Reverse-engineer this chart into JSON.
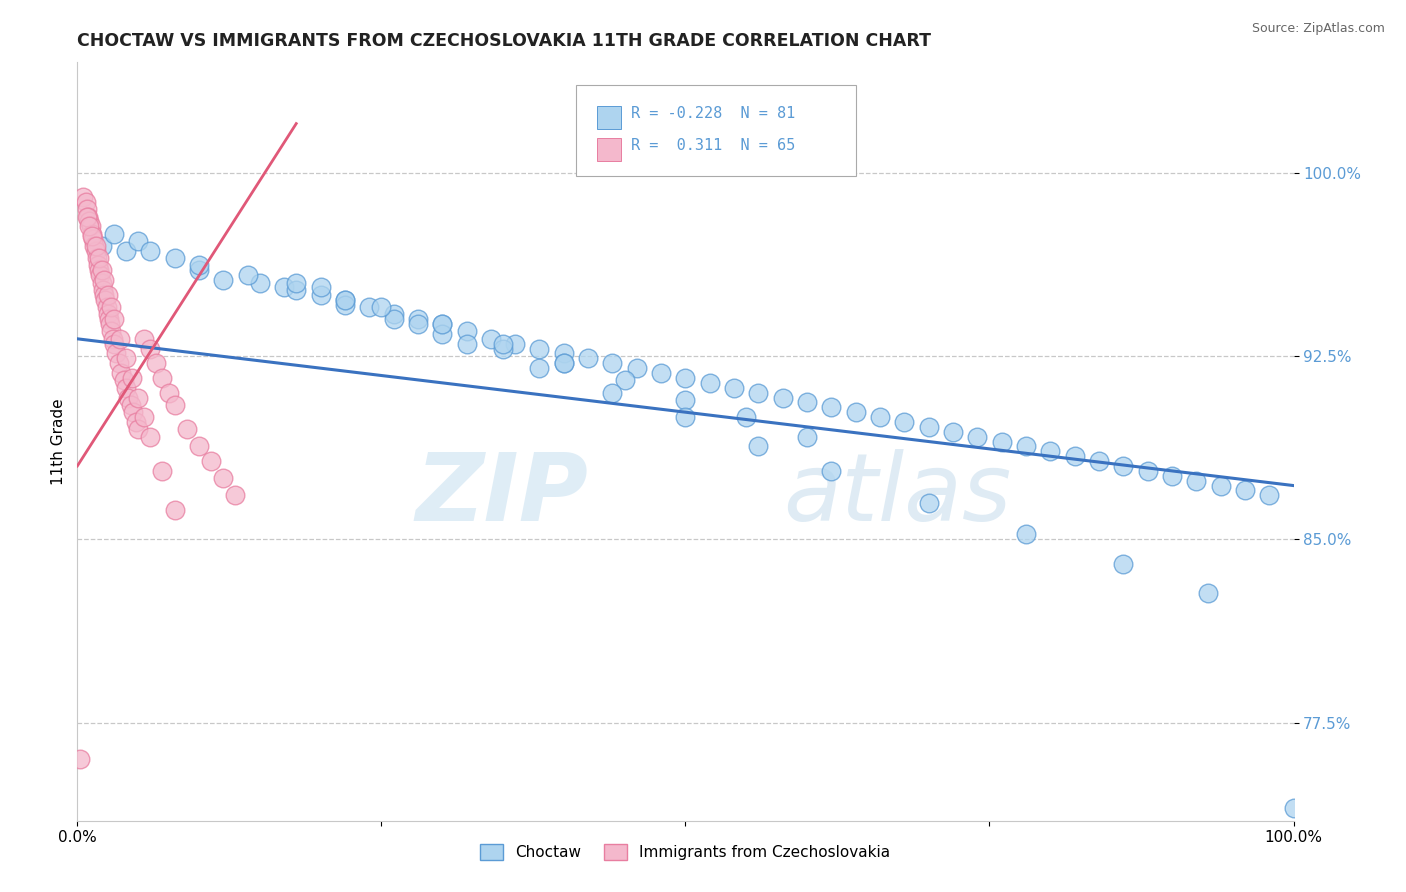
{
  "title": "CHOCTAW VS IMMIGRANTS FROM CZECHOSLOVAKIA 11TH GRADE CORRELATION CHART",
  "source": "Source: ZipAtlas.com",
  "ylabel": "11th Grade",
  "yticks": [
    0.775,
    0.85,
    0.925,
    1.0
  ],
  "ytick_labels": [
    "77.5%",
    "85.0%",
    "92.5%",
    "100.0%"
  ],
  "xlim": [
    0.0,
    1.0
  ],
  "ylim": [
    0.735,
    1.045
  ],
  "legend_blue_r": "-0.228",
  "legend_blue_n": "81",
  "legend_pink_r": "0.311",
  "legend_pink_n": "65",
  "legend_label_blue": "Choctaw",
  "legend_label_pink": "Immigrants from Czechoslovakia",
  "blue_color": "#aed4ef",
  "pink_color": "#f4b8cc",
  "blue_edge_color": "#5b9bd5",
  "pink_edge_color": "#e87ea0",
  "blue_line_color": "#3a72c0",
  "pink_line_color": "#e05878",
  "watermark_zip": "ZIP",
  "watermark_atlas": "atlas",
  "blue_scatter_x": [
    0.02,
    0.03,
    0.04,
    0.05,
    0.06,
    0.08,
    0.1,
    0.12,
    0.15,
    0.17,
    0.2,
    0.22,
    0.24,
    0.26,
    0.28,
    0.3,
    0.32,
    0.34,
    0.36,
    0.38,
    0.4,
    0.42,
    0.44,
    0.46,
    0.48,
    0.5,
    0.52,
    0.54,
    0.56,
    0.58,
    0.6,
    0.62,
    0.64,
    0.66,
    0.68,
    0.7,
    0.72,
    0.74,
    0.76,
    0.78,
    0.8,
    0.82,
    0.84,
    0.86,
    0.88,
    0.9,
    0.92,
    0.94,
    0.96,
    0.98,
    1.0,
    0.1,
    0.14,
    0.18,
    0.22,
    0.26,
    0.3,
    0.35,
    0.4,
    0.2,
    0.25,
    0.3,
    0.35,
    0.4,
    0.45,
    0.5,
    0.55,
    0.6,
    0.18,
    0.22,
    0.28,
    0.32,
    0.38,
    0.44,
    0.5,
    0.56,
    0.62,
    0.7,
    0.78,
    0.86,
    0.93
  ],
  "blue_scatter_y": [
    0.97,
    0.975,
    0.968,
    0.972,
    0.968,
    0.965,
    0.96,
    0.956,
    0.955,
    0.953,
    0.95,
    0.948,
    0.945,
    0.942,
    0.94,
    0.938,
    0.935,
    0.932,
    0.93,
    0.928,
    0.926,
    0.924,
    0.922,
    0.92,
    0.918,
    0.916,
    0.914,
    0.912,
    0.91,
    0.908,
    0.906,
    0.904,
    0.902,
    0.9,
    0.898,
    0.896,
    0.894,
    0.892,
    0.89,
    0.888,
    0.886,
    0.884,
    0.882,
    0.88,
    0.878,
    0.876,
    0.874,
    0.872,
    0.87,
    0.868,
    0.74,
    0.962,
    0.958,
    0.952,
    0.946,
    0.94,
    0.934,
    0.928,
    0.922,
    0.953,
    0.945,
    0.938,
    0.93,
    0.922,
    0.915,
    0.907,
    0.9,
    0.892,
    0.955,
    0.948,
    0.938,
    0.93,
    0.92,
    0.91,
    0.9,
    0.888,
    0.878,
    0.865,
    0.852,
    0.84,
    0.828
  ],
  "pink_scatter_x": [
    0.005,
    0.007,
    0.008,
    0.009,
    0.01,
    0.011,
    0.012,
    0.013,
    0.014,
    0.015,
    0.016,
    0.017,
    0.018,
    0.019,
    0.02,
    0.021,
    0.022,
    0.023,
    0.024,
    0.025,
    0.026,
    0.027,
    0.028,
    0.029,
    0.03,
    0.032,
    0.034,
    0.036,
    0.038,
    0.04,
    0.042,
    0.044,
    0.046,
    0.048,
    0.05,
    0.055,
    0.06,
    0.065,
    0.07,
    0.075,
    0.08,
    0.09,
    0.1,
    0.11,
    0.12,
    0.13,
    0.008,
    0.01,
    0.012,
    0.015,
    0.018,
    0.02,
    0.022,
    0.025,
    0.028,
    0.03,
    0.035,
    0.04,
    0.045,
    0.05,
    0.055,
    0.06,
    0.07,
    0.08,
    0.002
  ],
  "pink_scatter_y": [
    0.99,
    0.988,
    0.985,
    0.982,
    0.98,
    0.978,
    0.975,
    0.973,
    0.97,
    0.968,
    0.965,
    0.962,
    0.96,
    0.958,
    0.955,
    0.952,
    0.95,
    0.948,
    0.945,
    0.942,
    0.94,
    0.938,
    0.935,
    0.932,
    0.93,
    0.926,
    0.922,
    0.918,
    0.915,
    0.912,
    0.908,
    0.905,
    0.902,
    0.898,
    0.895,
    0.932,
    0.928,
    0.922,
    0.916,
    0.91,
    0.905,
    0.895,
    0.888,
    0.882,
    0.875,
    0.868,
    0.982,
    0.978,
    0.974,
    0.97,
    0.965,
    0.96,
    0.956,
    0.95,
    0.945,
    0.94,
    0.932,
    0.924,
    0.916,
    0.908,
    0.9,
    0.892,
    0.878,
    0.862,
    0.76
  ],
  "blue_trend_start_y": 0.932,
  "blue_trend_end_y": 0.872,
  "pink_trend_x0": 0.0,
  "pink_trend_y0": 0.88,
  "pink_trend_x1": 0.18,
  "pink_trend_y1": 1.02
}
